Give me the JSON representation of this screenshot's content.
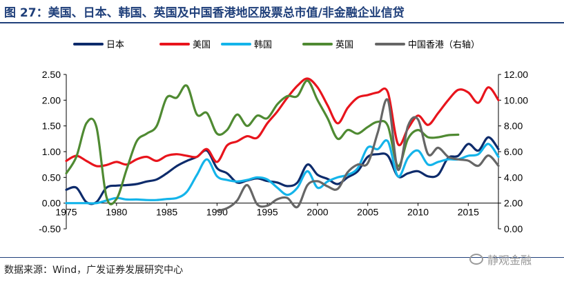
{
  "header": {
    "title": "图 27：美国、日本、韩国、英国及中国香港地区股票总市值/非金融企业信贷"
  },
  "footer": {
    "source": "数据来源：Wind，广发证券发展研究中心",
    "watermark": "静观金融"
  },
  "chart_data": {
    "type": "line",
    "title": "图 27：美国、日本、韩国、英国及中国香港地区股票总市值/非金融企业信贷",
    "xlabel": "",
    "ylabel": "",
    "xlim": [
      1975,
      2018
    ],
    "ylim": [
      -0.5,
      2.5
    ],
    "y2lim": [
      0,
      12
    ],
    "x_ticks": [
      1975,
      1980,
      1985,
      1990,
      1995,
      2000,
      2005,
      2010,
      2015
    ],
    "y_ticks": [
      "-0.50",
      "0.00",
      "0.50",
      "1.00",
      "1.50",
      "2.00",
      "2.50"
    ],
    "y2_ticks": [
      "0.00",
      "2.00",
      "4.00",
      "6.00",
      "8.00",
      "10.00",
      "12.00"
    ],
    "legend_position": "top",
    "grid": false,
    "series": [
      {
        "name": "日本",
        "color": "#0d2b6b",
        "axis": "left",
        "points": [
          [
            1975,
            0.26
          ],
          [
            1976,
            0.3
          ],
          [
            1977,
            0.02
          ],
          [
            1978,
            0.02
          ],
          [
            1979,
            0.3
          ],
          [
            1980,
            0.34
          ],
          [
            1981,
            0.35
          ],
          [
            1982,
            0.37
          ],
          [
            1983,
            0.42
          ],
          [
            1984,
            0.46
          ],
          [
            1985,
            0.58
          ],
          [
            1986,
            0.72
          ],
          [
            1987,
            0.82
          ],
          [
            1988,
            0.9
          ],
          [
            1989,
            1.02
          ],
          [
            1990,
            0.68
          ],
          [
            1991,
            0.58
          ],
          [
            1992,
            0.4
          ],
          [
            1993,
            0.44
          ],
          [
            1994,
            0.48
          ],
          [
            1995,
            0.43
          ],
          [
            1996,
            0.4
          ],
          [
            1997,
            0.33
          ],
          [
            1998,
            0.4
          ],
          [
            1999,
            0.75
          ],
          [
            2000,
            0.55
          ],
          [
            2001,
            0.47
          ],
          [
            2002,
            0.37
          ],
          [
            2003,
            0.5
          ],
          [
            2004,
            0.62
          ],
          [
            2005,
            0.9
          ],
          [
            2006,
            0.95
          ],
          [
            2007,
            0.92
          ],
          [
            2008,
            0.52
          ],
          [
            2009,
            0.58
          ],
          [
            2010,
            0.62
          ],
          [
            2011,
            0.52
          ],
          [
            2012,
            0.55
          ],
          [
            2013,
            0.88
          ],
          [
            2014,
            0.92
          ],
          [
            2015,
            1.15
          ],
          [
            2016,
            1.02
          ],
          [
            2017,
            1.28
          ],
          [
            2018,
            1.05
          ]
        ]
      },
      {
        "name": "美国",
        "color": "#e8141c",
        "axis": "left",
        "points": [
          [
            1975,
            0.82
          ],
          [
            1976,
            0.92
          ],
          [
            1977,
            0.82
          ],
          [
            1978,
            0.72
          ],
          [
            1979,
            0.74
          ],
          [
            1980,
            0.8
          ],
          [
            1981,
            0.75
          ],
          [
            1982,
            0.85
          ],
          [
            1983,
            0.9
          ],
          [
            1984,
            0.82
          ],
          [
            1985,
            0.92
          ],
          [
            1986,
            0.95
          ],
          [
            1987,
            0.92
          ],
          [
            1988,
            0.9
          ],
          [
            1989,
            1.05
          ],
          [
            1990,
            0.8
          ],
          [
            1991,
            1.12
          ],
          [
            1992,
            1.2
          ],
          [
            1993,
            1.3
          ],
          [
            1994,
            1.27
          ],
          [
            1995,
            1.55
          ],
          [
            1996,
            1.78
          ],
          [
            1997,
            2.05
          ],
          [
            1998,
            2.28
          ],
          [
            1999,
            2.42
          ],
          [
            2000,
            2.25
          ],
          [
            2001,
            1.9
          ],
          [
            2002,
            1.55
          ],
          [
            2003,
            1.85
          ],
          [
            2004,
            2.05
          ],
          [
            2005,
            2.1
          ],
          [
            2006,
            2.15
          ],
          [
            2007,
            2.15
          ],
          [
            2008,
            1.15
          ],
          [
            2009,
            1.45
          ],
          [
            2010,
            1.7
          ],
          [
            2011,
            1.52
          ],
          [
            2012,
            1.75
          ],
          [
            2013,
            2.0
          ],
          [
            2014,
            2.2
          ],
          [
            2015,
            2.15
          ],
          [
            2016,
            1.95
          ],
          [
            2017,
            2.25
          ],
          [
            2018,
            2.0
          ]
        ]
      },
      {
        "name": "韩国",
        "color": "#14b4ea",
        "axis": "left",
        "points": [
          [
            1975,
            0.0
          ],
          [
            1976,
            0.0
          ],
          [
            1977,
            0.0
          ],
          [
            1978,
            0.0
          ],
          [
            1979,
            0.05
          ],
          [
            1980,
            0.1
          ],
          [
            1981,
            0.07
          ],
          [
            1982,
            0.07
          ],
          [
            1983,
            0.06
          ],
          [
            1984,
            0.06
          ],
          [
            1985,
            0.08
          ],
          [
            1986,
            0.1
          ],
          [
            1987,
            0.22
          ],
          [
            1988,
            0.55
          ],
          [
            1989,
            0.85
          ],
          [
            1990,
            0.52
          ],
          [
            1991,
            0.45
          ],
          [
            1992,
            0.42
          ],
          [
            1993,
            0.45
          ],
          [
            1994,
            0.5
          ],
          [
            1995,
            0.46
          ],
          [
            1996,
            0.3
          ],
          [
            1997,
            0.16
          ],
          [
            1998,
            0.3
          ],
          [
            1999,
            0.62
          ],
          [
            2000,
            0.3
          ],
          [
            2001,
            0.42
          ],
          [
            2002,
            0.5
          ],
          [
            2003,
            0.55
          ],
          [
            2004,
            0.68
          ],
          [
            2005,
            1.08
          ],
          [
            2006,
            1.05
          ],
          [
            2007,
            1.2
          ],
          [
            2008,
            0.52
          ],
          [
            2009,
            0.88
          ],
          [
            2010,
            1.02
          ],
          [
            2011,
            0.75
          ],
          [
            2012,
            0.8
          ],
          [
            2013,
            0.85
          ],
          [
            2014,
            0.85
          ],
          [
            2015,
            0.92
          ],
          [
            2016,
            0.95
          ],
          [
            2017,
            1.15
          ],
          [
            2018,
            0.9
          ]
        ]
      },
      {
        "name": "英国",
        "color": "#4f8a32",
        "axis": "left",
        "points": [
          [
            1975,
            0.58
          ],
          [
            1976,
            0.9
          ],
          [
            1977,
            1.55
          ],
          [
            1978,
            1.48
          ],
          [
            1979,
            0.12
          ],
          [
            1980,
            0.08
          ],
          [
            1981,
            0.65
          ],
          [
            1982,
            1.2
          ],
          [
            1983,
            1.35
          ],
          [
            1984,
            1.5
          ],
          [
            1985,
            2.05
          ],
          [
            1986,
            2.05
          ],
          [
            1987,
            2.28
          ],
          [
            1988,
            1.72
          ],
          [
            1989,
            1.75
          ],
          [
            1990,
            1.35
          ],
          [
            1991,
            1.42
          ],
          [
            1992,
            1.72
          ],
          [
            1993,
            1.5
          ],
          [
            1994,
            1.7
          ],
          [
            1995,
            1.65
          ],
          [
            1996,
            1.92
          ],
          [
            1997,
            2.08
          ],
          [
            1998,
            2.08
          ],
          [
            1999,
            2.38
          ],
          [
            2000,
            2.0
          ],
          [
            2001,
            1.65
          ],
          [
            2002,
            1.25
          ],
          [
            2003,
            1.42
          ],
          [
            2004,
            1.35
          ],
          [
            2005,
            1.48
          ],
          [
            2006,
            1.58
          ],
          [
            2007,
            1.5
          ],
          [
            2008,
            0.72
          ],
          [
            2009,
            1.25
          ],
          [
            2010,
            1.42
          ],
          [
            2011,
            1.28
          ],
          [
            2012,
            1.28
          ],
          [
            2013,
            1.32
          ],
          [
            2014,
            1.33
          ]
        ]
      },
      {
        "name": "中国香港（右轴）",
        "color": "#666666",
        "axis": "right",
        "points": [
          [
            1990,
            1.4
          ],
          [
            1991,
            1.6
          ],
          [
            1992,
            2.2
          ],
          [
            1993,
            3.4
          ],
          [
            1994,
            1.9
          ],
          [
            1995,
            1.8
          ],
          [
            1996,
            2.3
          ],
          [
            1997,
            2.4
          ],
          [
            1998,
            1.7
          ],
          [
            1999,
            3.4
          ],
          [
            2000,
            3.7
          ],
          [
            2001,
            3.3
          ],
          [
            2002,
            3.1
          ],
          [
            2003,
            4.4
          ],
          [
            2004,
            5.0
          ],
          [
            2005,
            5.1
          ],
          [
            2006,
            7.5
          ],
          [
            2007,
            10.0
          ],
          [
            2008,
            4.6
          ],
          [
            2009,
            8.0
          ],
          [
            2010,
            8.5
          ],
          [
            2011,
            5.8
          ],
          [
            2012,
            6.3
          ],
          [
            2013,
            5.6
          ],
          [
            2014,
            5.4
          ],
          [
            2015,
            5.3
          ],
          [
            2016,
            4.9
          ],
          [
            2017,
            5.7
          ],
          [
            2018,
            4.9
          ]
        ]
      }
    ]
  }
}
